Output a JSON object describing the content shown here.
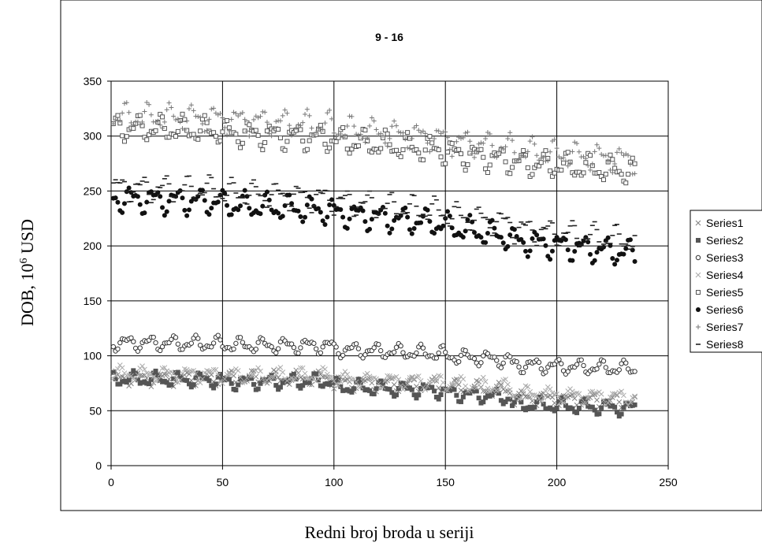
{
  "chart_data": {
    "type": "scatter",
    "title": "9 - 16",
    "xlabel": "Redni broj broda u seriji",
    "ylabel_prefix": "DOB, 10",
    "ylabel_superscript": "6",
    "ylabel_suffix": " USD",
    "xlim": [
      0,
      250
    ],
    "ylim": [
      0,
      350
    ],
    "x_ticks": [
      0,
      50,
      100,
      150,
      200,
      250
    ],
    "y_ticks": [
      0,
      50,
      100,
      150,
      200,
      250,
      300,
      350
    ],
    "grid": true,
    "legend_position": "right",
    "n_points": 235,
    "series": [
      {
        "name": "Series1",
        "marker": "x",
        "color": "#808080",
        "segments": [
          [
            0,
            80,
            49,
            79
          ],
          [
            50,
            79,
            99,
            80
          ],
          [
            100,
            76,
            149,
            73
          ],
          [
            150,
            72,
            179,
            68
          ],
          [
            180,
            62,
            235,
            58
          ]
        ]
      },
      {
        "name": "Series2",
        "marker": "square-filled",
        "color": "#555555",
        "segments": [
          [
            0,
            79,
            49,
            78
          ],
          [
            50,
            76,
            99,
            77
          ],
          [
            100,
            72,
            149,
            68
          ],
          [
            150,
            66,
            179,
            62
          ],
          [
            180,
            56,
            235,
            52
          ]
        ]
      },
      {
        "name": "Series3",
        "marker": "circle-open",
        "color": "#333333",
        "segments": [
          [
            0,
            112,
            49,
            111
          ],
          [
            50,
            110,
            99,
            109
          ],
          [
            100,
            106,
            149,
            102
          ],
          [
            150,
            100,
            179,
            96
          ],
          [
            180,
            92,
            235,
            88
          ]
        ]
      },
      {
        "name": "Series4",
        "marker": "x-light",
        "color": "#aaaaaa",
        "segments": [
          [
            0,
            84,
            49,
            83
          ],
          [
            50,
            82,
            99,
            82
          ],
          [
            100,
            79,
            149,
            76
          ],
          [
            150,
            75,
            179,
            71
          ],
          [
            180,
            66,
            235,
            62
          ]
        ]
      },
      {
        "name": "Series5",
        "marker": "square-open",
        "color": "#555555",
        "segments": [
          [
            0,
            308,
            49,
            305
          ],
          [
            50,
            303,
            99,
            298
          ],
          [
            100,
            296,
            149,
            287
          ],
          [
            150,
            285,
            179,
            278
          ],
          [
            180,
            276,
            235,
            268
          ]
        ]
      },
      {
        "name": "Series6",
        "marker": "circle-filled",
        "color": "#111111",
        "segments": [
          [
            0,
            243,
            49,
            240
          ],
          [
            50,
            238,
            99,
            232
          ],
          [
            100,
            230,
            149,
            220
          ],
          [
            150,
            218,
            179,
            208
          ],
          [
            180,
            205,
            235,
            193
          ]
        ]
      },
      {
        "name": "Series7",
        "marker": "plus",
        "color": "#777777",
        "segments": [
          [
            0,
            318,
            49,
            316
          ],
          [
            50,
            315,
            99,
            310
          ],
          [
            100,
            307,
            149,
            298
          ],
          [
            150,
            296,
            179,
            290
          ],
          [
            180,
            287,
            235,
            278
          ]
        ]
      },
      {
        "name": "Series8",
        "marker": "dash",
        "color": "#222222",
        "segments": [
          [
            0,
            253,
            49,
            251
          ],
          [
            50,
            249,
            99,
            243
          ],
          [
            100,
            241,
            149,
            231
          ],
          [
            150,
            229,
            179,
            220
          ],
          [
            180,
            216,
            235,
            205
          ]
        ]
      }
    ]
  }
}
